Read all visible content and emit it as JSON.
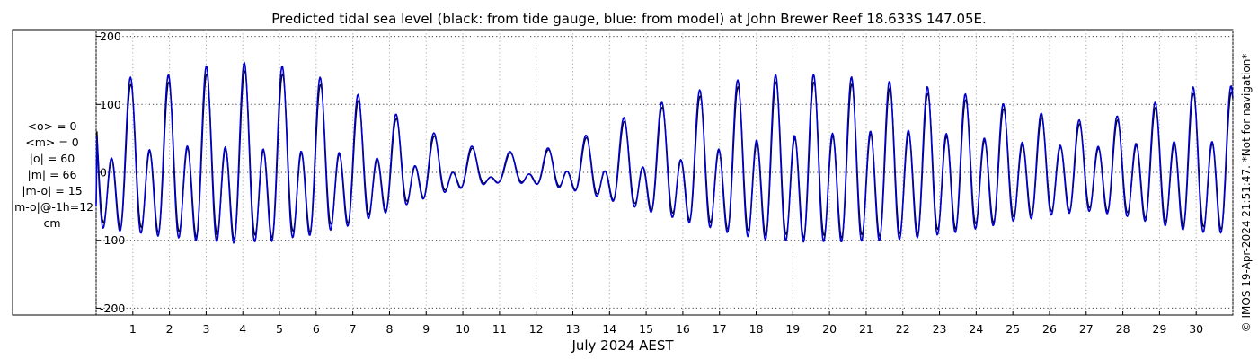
{
  "chart_data": {
    "type": "line",
    "title": "Predicted tidal sea level (black: from tide gauge, blue: from model) at John Brewer Reef 18.633S 147.05E.",
    "xlabel": "July 2024 AEST",
    "ylabel": "",
    "ylim": [
      -210,
      210
    ],
    "xlim": [
      0,
      31
    ],
    "y_ticks": [
      "-200",
      "-100",
      "0",
      "100",
      "200"
    ],
    "x_ticks": [
      "1",
      "2",
      "3",
      "4",
      "5",
      "6",
      "7",
      "8",
      "9",
      "10",
      "11",
      "12",
      "13",
      "14",
      "15",
      "16",
      "17",
      "18",
      "19",
      "20",
      "21",
      "22",
      "23",
      "24",
      "25",
      "26",
      "27",
      "28",
      "29",
      "30"
    ],
    "grid": true,
    "stats": [
      "<o> = 0",
      "<m> = 0",
      "|o| = 60",
      "|m| = 66",
      "|m-o| = 15",
      "|m-o|@-1h=12",
      "cm"
    ],
    "side_note": "© IMOS 19-Apr-2024 21:51:47. *Not for navigation*",
    "series": [
      {
        "color": "#000000",
        "tide_model": {
          "diurnal_amp_by_day": [
            55,
            52,
            48,
            55,
            58,
            58,
            52,
            42,
            34,
            26,
            20,
            18,
            15,
            20,
            32,
            40,
            44,
            44,
            44,
            42,
            40,
            36,
            32,
            30,
            28,
            24,
            20,
            18,
            20,
            28,
            38
          ],
          "semidiurnal_amp_by_day": [
            70,
            78,
            85,
            90,
            92,
            88,
            80,
            68,
            50,
            32,
            18,
            10,
            14,
            22,
            34,
            48,
            62,
            76,
            88,
            92,
            93,
            92,
            90,
            84,
            76,
            66,
            58,
            52,
            58,
            70,
            80
          ],
          "semidiurnal_period_h": 12.42,
          "diurnal_period_h": 24.84,
          "semidiurnal_phase": 1.1,
          "diurnal_phase": 0.5,
          "start_value": -45,
          "end_value": -20,
          "amp_scale": 1.0
        }
      },
      {
        "color": "#0000cc",
        "tide_model": {
          "diurnal_amp_by_day": [
            55,
            52,
            48,
            55,
            58,
            58,
            52,
            42,
            34,
            26,
            20,
            18,
            15,
            20,
            32,
            40,
            44,
            44,
            44,
            42,
            40,
            36,
            32,
            30,
            28,
            24,
            20,
            18,
            20,
            28,
            38
          ],
          "semidiurnal_amp_by_day": [
            70,
            78,
            85,
            90,
            92,
            88,
            80,
            68,
            50,
            32,
            18,
            10,
            14,
            22,
            34,
            48,
            62,
            76,
            88,
            92,
            93,
            92,
            90,
            84,
            76,
            66,
            58,
            52,
            58,
            70,
            80
          ],
          "semidiurnal_period_h": 12.42,
          "diurnal_period_h": 24.84,
          "semidiurnal_phase": 1.22,
          "diurnal_phase": 0.6,
          "start_value": -50,
          "end_value": -20,
          "amp_scale": 1.08
        }
      }
    ]
  }
}
